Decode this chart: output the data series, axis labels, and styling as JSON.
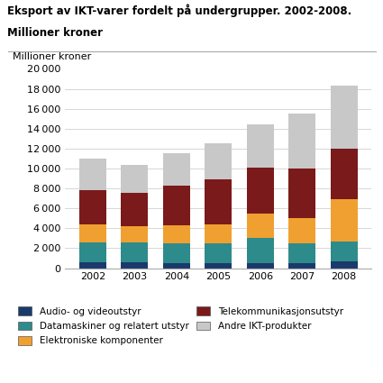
{
  "title_line1": "Eksport av IKT-varer fordelt på undergrupper. 2002-2008.",
  "title_line2": "Millioner kroner",
  "ylabel": "Millioner kroner",
  "years": [
    2002,
    2003,
    2004,
    2005,
    2006,
    2007,
    2008
  ],
  "categories": [
    "Audio- og videoutstyr",
    "Datamaskiner og relatert utstyr",
    "Elektroniske komponenter",
    "Telekommunikasjonsutstyr",
    "Andre IKT-produkter"
  ],
  "colors": [
    "#1a3a6b",
    "#2e8b8b",
    "#f0a030",
    "#7a1a1a",
    "#c8c8c8"
  ],
  "values": {
    "Audio- og videoutstyr": [
      600,
      600,
      500,
      500,
      500,
      500,
      700
    ],
    "Datamaskiner og relatert utstyr": [
      2000,
      2000,
      2000,
      2000,
      2500,
      2000,
      2000
    ],
    "Elektroniske komponenter": [
      1800,
      1600,
      1800,
      1900,
      2500,
      2500,
      4200
    ],
    "Telekommunikasjonsutstyr": [
      3400,
      3400,
      4000,
      4500,
      4600,
      5000,
      5100
    ],
    "Andre IKT-produkter": [
      3200,
      2800,
      3200,
      3600,
      4300,
      5500,
      6300
    ]
  },
  "ylim": [
    0,
    20000
  ],
  "yticks": [
    0,
    2000,
    4000,
    6000,
    8000,
    10000,
    12000,
    14000,
    16000,
    18000,
    20000
  ],
  "background_color": "#ffffff",
  "grid_color": "#d0d0d0"
}
